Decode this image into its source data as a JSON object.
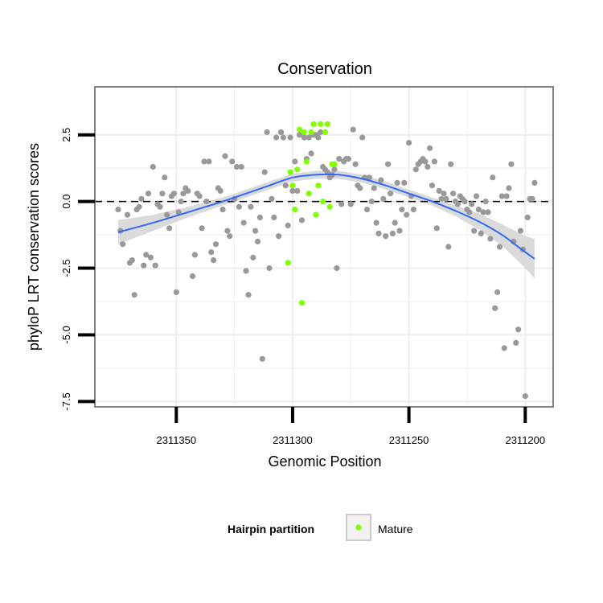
{
  "chart_data": {
    "type": "scatter",
    "title": "Conservation",
    "xlabel": "Genomic Position",
    "ylabel": "phyloP LRT conservation scores",
    "x_reversed": true,
    "xlim": [
      2311385,
      2311188
    ],
    "ylim": [
      -7.7,
      4.3
    ],
    "x_ticks": [
      2311350,
      2311300,
      2311250,
      2311200
    ],
    "x_tick_labels": [
      "2311350",
      "2311300",
      "2311250",
      "2311200"
    ],
    "y_ticks": [
      -7.5,
      -5.0,
      -2.5,
      0.0,
      2.5
    ],
    "y_tick_labels": [
      "-7.5",
      "-5.0",
      "-2.5",
      "0.0",
      "2.5"
    ],
    "reference_line_y": 0.0,
    "grid": true,
    "colors": {
      "hairpin": "#999999",
      "mature": "#7fff00",
      "smooth_line": "#3366ff",
      "confidence_band": "#d3d3d3",
      "panel_border": "#808080",
      "grid": "#eeeeee"
    },
    "legend": {
      "title": "Hairpin partition",
      "placement": "bottom",
      "entries": [
        {
          "label": "Mature",
          "color": "#7fff00"
        }
      ]
    },
    "series": [
      {
        "group": "hairpin",
        "points": [
          [
            2311375,
            -0.3
          ],
          [
            2311374,
            -1.1
          ],
          [
            2311373,
            -1.6
          ],
          [
            2311371,
            -0.5
          ],
          [
            2311370,
            -2.3
          ],
          [
            2311369,
            -2.2
          ],
          [
            2311368,
            -3.5
          ],
          [
            2311367,
            -0.3
          ],
          [
            2311366,
            -0.2
          ],
          [
            2311365,
            0.1
          ],
          [
            2311364,
            -2.4
          ],
          [
            2311363,
            -2.0
          ],
          [
            2311362,
            0.3
          ],
          [
            2311361,
            -2.1
          ],
          [
            2311360,
            1.3
          ],
          [
            2311359,
            -2.4
          ],
          [
            2311358,
            -0.1
          ],
          [
            2311357,
            -0.2
          ],
          [
            2311356,
            0.3
          ],
          [
            2311355,
            0.9
          ],
          [
            2311354,
            -0.5
          ],
          [
            2311353,
            -1.0
          ],
          [
            2311352,
            0.2
          ],
          [
            2311351,
            0.3
          ],
          [
            2311350,
            -3.4
          ],
          [
            2311349,
            -0.4
          ],
          [
            2311348,
            0.0
          ],
          [
            2311347,
            0.3
          ],
          [
            2311346,
            0.5
          ],
          [
            2311345,
            0.4
          ],
          [
            2311343,
            -2.8
          ],
          [
            2311342,
            -2.0
          ],
          [
            2311341,
            0.3
          ],
          [
            2311340,
            0.2
          ],
          [
            2311339,
            -1.0
          ],
          [
            2311338,
            1.5
          ],
          [
            2311337,
            0.0
          ],
          [
            2311336,
            1.5
          ],
          [
            2311335,
            -1.9
          ],
          [
            2311334,
            -2.2
          ],
          [
            2311333,
            -1.6
          ],
          [
            2311332,
            0.5
          ],
          [
            2311331,
            0.4
          ],
          [
            2311330,
            -0.3
          ],
          [
            2311329,
            1.7
          ],
          [
            2311328,
            -1.1
          ],
          [
            2311327,
            -1.3
          ],
          [
            2311326,
            1.5
          ],
          [
            2311325,
            0.1
          ],
          [
            2311324,
            1.3
          ],
          [
            2311323,
            -0.2
          ],
          [
            2311322,
            1.3
          ],
          [
            2311321,
            -0.8
          ],
          [
            2311320,
            -2.6
          ],
          [
            2311319,
            -3.5
          ],
          [
            2311318,
            -0.2
          ],
          [
            2311317,
            -2.1
          ],
          [
            2311316,
            -1.1
          ],
          [
            2311315,
            -1.5
          ],
          [
            2311314,
            -0.6
          ],
          [
            2311313,
            -5.9
          ],
          [
            2311312,
            1.1
          ],
          [
            2311311,
            2.6
          ],
          [
            2311310,
            -2.5
          ],
          [
            2311309,
            0.1
          ],
          [
            2311308,
            -0.6
          ],
          [
            2311307,
            2.4
          ],
          [
            2311306,
            -1.3
          ],
          [
            2311305,
            2.6
          ],
          [
            2311304,
            2.4
          ],
          [
            2311303,
            0.6
          ],
          [
            2311302,
            -0.9
          ],
          [
            2311301,
            2.4
          ],
          [
            2311300,
            0.4
          ],
          [
            2311299,
            1.5
          ],
          [
            2311298,
            0.4
          ],
          [
            2311297,
            2.5
          ],
          [
            2311296,
            -0.7
          ],
          [
            2311295,
            2.4
          ],
          [
            2311294,
            1.6
          ],
          [
            2311293,
            2.4
          ],
          [
            2311292,
            1.8
          ],
          [
            2311291,
            2.5
          ],
          [
            2311290,
            2.5
          ],
          [
            2311289,
            2.4
          ],
          [
            2311288,
            2.6
          ],
          [
            2311287,
            1.3
          ],
          [
            2311286,
            1.2
          ],
          [
            2311285,
            1.1
          ],
          [
            2311284,
            0.9
          ],
          [
            2311283,
            1.0
          ],
          [
            2311282,
            1.2
          ],
          [
            2311281,
            -2.5
          ],
          [
            2311280,
            1.6
          ],
          [
            2311279,
            -0.1
          ],
          [
            2311278,
            1.5
          ],
          [
            2311277,
            1.6
          ],
          [
            2311276,
            1.6
          ],
          [
            2311275,
            -0.1
          ],
          [
            2311274,
            2.7
          ],
          [
            2311273,
            1.4
          ],
          [
            2311272,
            0.6
          ],
          [
            2311271,
            0.5
          ],
          [
            2311270,
            2.4
          ],
          [
            2311269,
            0.9
          ],
          [
            2311268,
            -0.3
          ],
          [
            2311267,
            0.9
          ],
          [
            2311266,
            0.0
          ],
          [
            2311265,
            0.5
          ],
          [
            2311264,
            -0.8
          ],
          [
            2311263,
            -1.2
          ],
          [
            2311262,
            0.8
          ],
          [
            2311261,
            0.1
          ],
          [
            2311260,
            -1.3
          ],
          [
            2311259,
            1.4
          ],
          [
            2311258,
            0.3
          ],
          [
            2311257,
            -1.2
          ],
          [
            2311256,
            -0.8
          ],
          [
            2311255,
            0.7
          ],
          [
            2311254,
            -1.1
          ],
          [
            2311253,
            -0.3
          ],
          [
            2311252,
            0.7
          ],
          [
            2311251,
            -0.5
          ],
          [
            2311250,
            2.2
          ],
          [
            2311249,
            0.2
          ],
          [
            2311248,
            -0.3
          ],
          [
            2311247,
            1.2
          ],
          [
            2311246,
            1.4
          ],
          [
            2311245,
            1.5
          ],
          [
            2311244,
            1.6
          ],
          [
            2311243,
            1.5
          ],
          [
            2311242,
            1.3
          ],
          [
            2311241,
            2.0
          ],
          [
            2311240,
            0.6
          ],
          [
            2311239,
            1.5
          ],
          [
            2311238,
            -1.0
          ],
          [
            2311237,
            0.4
          ],
          [
            2311236,
            0.1
          ],
          [
            2311235,
            0.3
          ],
          [
            2311234,
            0.1
          ],
          [
            2311233,
            -1.7
          ],
          [
            2311232,
            1.4
          ],
          [
            2311231,
            0.3
          ],
          [
            2311230,
            0.0
          ],
          [
            2311229,
            -0.1
          ],
          [
            2311228,
            0.2
          ],
          [
            2311227,
            0.1
          ],
          [
            2311226,
            0.0
          ],
          [
            2311225,
            -0.3
          ],
          [
            2311224,
            -0.4
          ],
          [
            2311223,
            -0.1
          ],
          [
            2311222,
            -1.1
          ],
          [
            2311221,
            0.2
          ],
          [
            2311220,
            -0.3
          ],
          [
            2311219,
            -1.2
          ],
          [
            2311218,
            -0.4
          ],
          [
            2311217,
            0.0
          ],
          [
            2311216,
            -0.4
          ],
          [
            2311215,
            -1.4
          ],
          [
            2311214,
            0.9
          ],
          [
            2311213,
            -4.0
          ],
          [
            2311212,
            -3.4
          ],
          [
            2311211,
            -1.7
          ],
          [
            2311210,
            0.2
          ],
          [
            2311209,
            -5.5
          ],
          [
            2311208,
            0.2
          ],
          [
            2311207,
            0.5
          ],
          [
            2311206,
            1.4
          ],
          [
            2311205,
            -1.5
          ],
          [
            2311204,
            -5.3
          ],
          [
            2311203,
            -4.8
          ],
          [
            2311202,
            -1.1
          ],
          [
            2311201,
            -1.8
          ],
          [
            2311200,
            -7.3
          ],
          [
            2311199,
            -0.6
          ],
          [
            2311198,
            0.1
          ],
          [
            2311197,
            0.1
          ],
          [
            2311196,
            0.7
          ]
        ]
      },
      {
        "group": "mature",
        "name": "Mature",
        "points": [
          [
            2311302,
            -2.3
          ],
          [
            2311301,
            1.1
          ],
          [
            2311300,
            0.6
          ],
          [
            2311299,
            -0.3
          ],
          [
            2311298,
            1.2
          ],
          [
            2311297,
            2.7
          ],
          [
            2311296,
            -3.8
          ],
          [
            2311295,
            2.6
          ],
          [
            2311294,
            1.5
          ],
          [
            2311293,
            0.3
          ],
          [
            2311292,
            2.6
          ],
          [
            2311291,
            2.9
          ],
          [
            2311290,
            -0.5
          ],
          [
            2311289,
            0.6
          ],
          [
            2311288,
            2.9
          ],
          [
            2311287,
            0.0
          ],
          [
            2311286,
            2.6
          ],
          [
            2311285,
            2.9
          ],
          [
            2311284,
            -0.2
          ],
          [
            2311283,
            1.4
          ],
          [
            2311282,
            1.4
          ]
        ]
      }
    ],
    "smooth": {
      "x": [
        2311375,
        2311360,
        2311345,
        2311330,
        2311320,
        2311310,
        2311300,
        2311290,
        2311280,
        2311270,
        2311260,
        2311250,
        2311240,
        2311230,
        2311220,
        2311210,
        2311200,
        2311196
      ],
      "y": [
        -1.15,
        -0.8,
        -0.4,
        0.0,
        0.3,
        0.6,
        0.9,
        1.0,
        1.0,
        0.85,
        0.6,
        0.3,
        0.0,
        -0.35,
        -0.75,
        -1.25,
        -1.9,
        -2.15
      ],
      "lower": [
        -1.6,
        -1.1,
        -0.6,
        -0.15,
        0.15,
        0.45,
        0.75,
        0.85,
        0.85,
        0.7,
        0.45,
        0.15,
        -0.15,
        -0.55,
        -1.05,
        -1.65,
        -2.5,
        -2.9
      ],
      "upper": [
        -0.7,
        -0.5,
        -0.2,
        0.15,
        0.45,
        0.75,
        1.05,
        1.15,
        1.15,
        1.0,
        0.75,
        0.45,
        0.15,
        -0.15,
        -0.45,
        -0.85,
        -1.3,
        -1.4
      ]
    }
  }
}
